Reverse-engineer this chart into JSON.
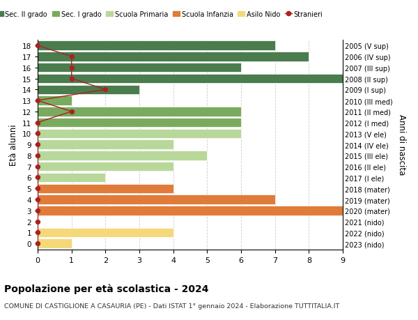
{
  "ages": [
    18,
    17,
    16,
    15,
    14,
    13,
    12,
    11,
    10,
    9,
    8,
    7,
    6,
    5,
    4,
    3,
    2,
    1,
    0
  ],
  "labels_right": [
    "2005 (V sup)",
    "2006 (IV sup)",
    "2007 (III sup)",
    "2008 (II sup)",
    "2009 (I sup)",
    "2010 (III med)",
    "2011 (II med)",
    "2012 (I med)",
    "2013 (V ele)",
    "2014 (IV ele)",
    "2015 (III ele)",
    "2016 (II ele)",
    "2017 (I ele)",
    "2018 (mater)",
    "2019 (mater)",
    "2020 (mater)",
    "2021 (nido)",
    "2022 (nido)",
    "2023 (nido)"
  ],
  "bar_values": [
    7,
    8,
    6,
    9,
    3,
    1,
    6,
    6,
    6,
    4,
    5,
    4,
    2,
    4,
    7,
    9,
    0,
    4,
    1
  ],
  "bar_colors": [
    "#4a7c4e",
    "#4a7c4e",
    "#4a7c4e",
    "#4a7c4e",
    "#4a7c4e",
    "#7aaa5e",
    "#7aaa5e",
    "#7aaa5e",
    "#b8d89a",
    "#b8d89a",
    "#b8d89a",
    "#b8d89a",
    "#b8d89a",
    "#e07b3a",
    "#e07b3a",
    "#e07b3a",
    "#f5d87a",
    "#f5d87a",
    "#f5d87a"
  ],
  "stranieri_values": [
    0,
    1,
    1,
    1,
    2,
    0,
    1,
    0,
    0,
    0,
    0,
    0,
    0,
    0,
    0,
    0,
    0,
    0,
    0
  ],
  "stranieri_color": "#aa2222",
  "legend_labels": [
    "Sec. II grado",
    "Sec. I grado",
    "Scuola Primaria",
    "Scuola Infanzia",
    "Asilo Nido",
    "Stranieri"
  ],
  "legend_colors": [
    "#4a7c4e",
    "#7aaa5e",
    "#b8d89a",
    "#e07b3a",
    "#f5d87a",
    "#aa2222"
  ],
  "ylabel_left": "Età alunni",
  "ylabel_right": "Anni di nascita",
  "title": "Popolazione per età scolastica - 2024",
  "subtitle": "COMUNE DI CASTIGLIONE A CASAURIA (PE) - Dati ISTAT 1° gennaio 2024 - Elaborazione TUTTITALIA.IT",
  "xlim": [
    0,
    9
  ],
  "xticks": [
    0,
    1,
    2,
    3,
    4,
    5,
    6,
    7,
    8,
    9
  ],
  "background_color": "#ffffff",
  "grid_color": "#cccccc"
}
